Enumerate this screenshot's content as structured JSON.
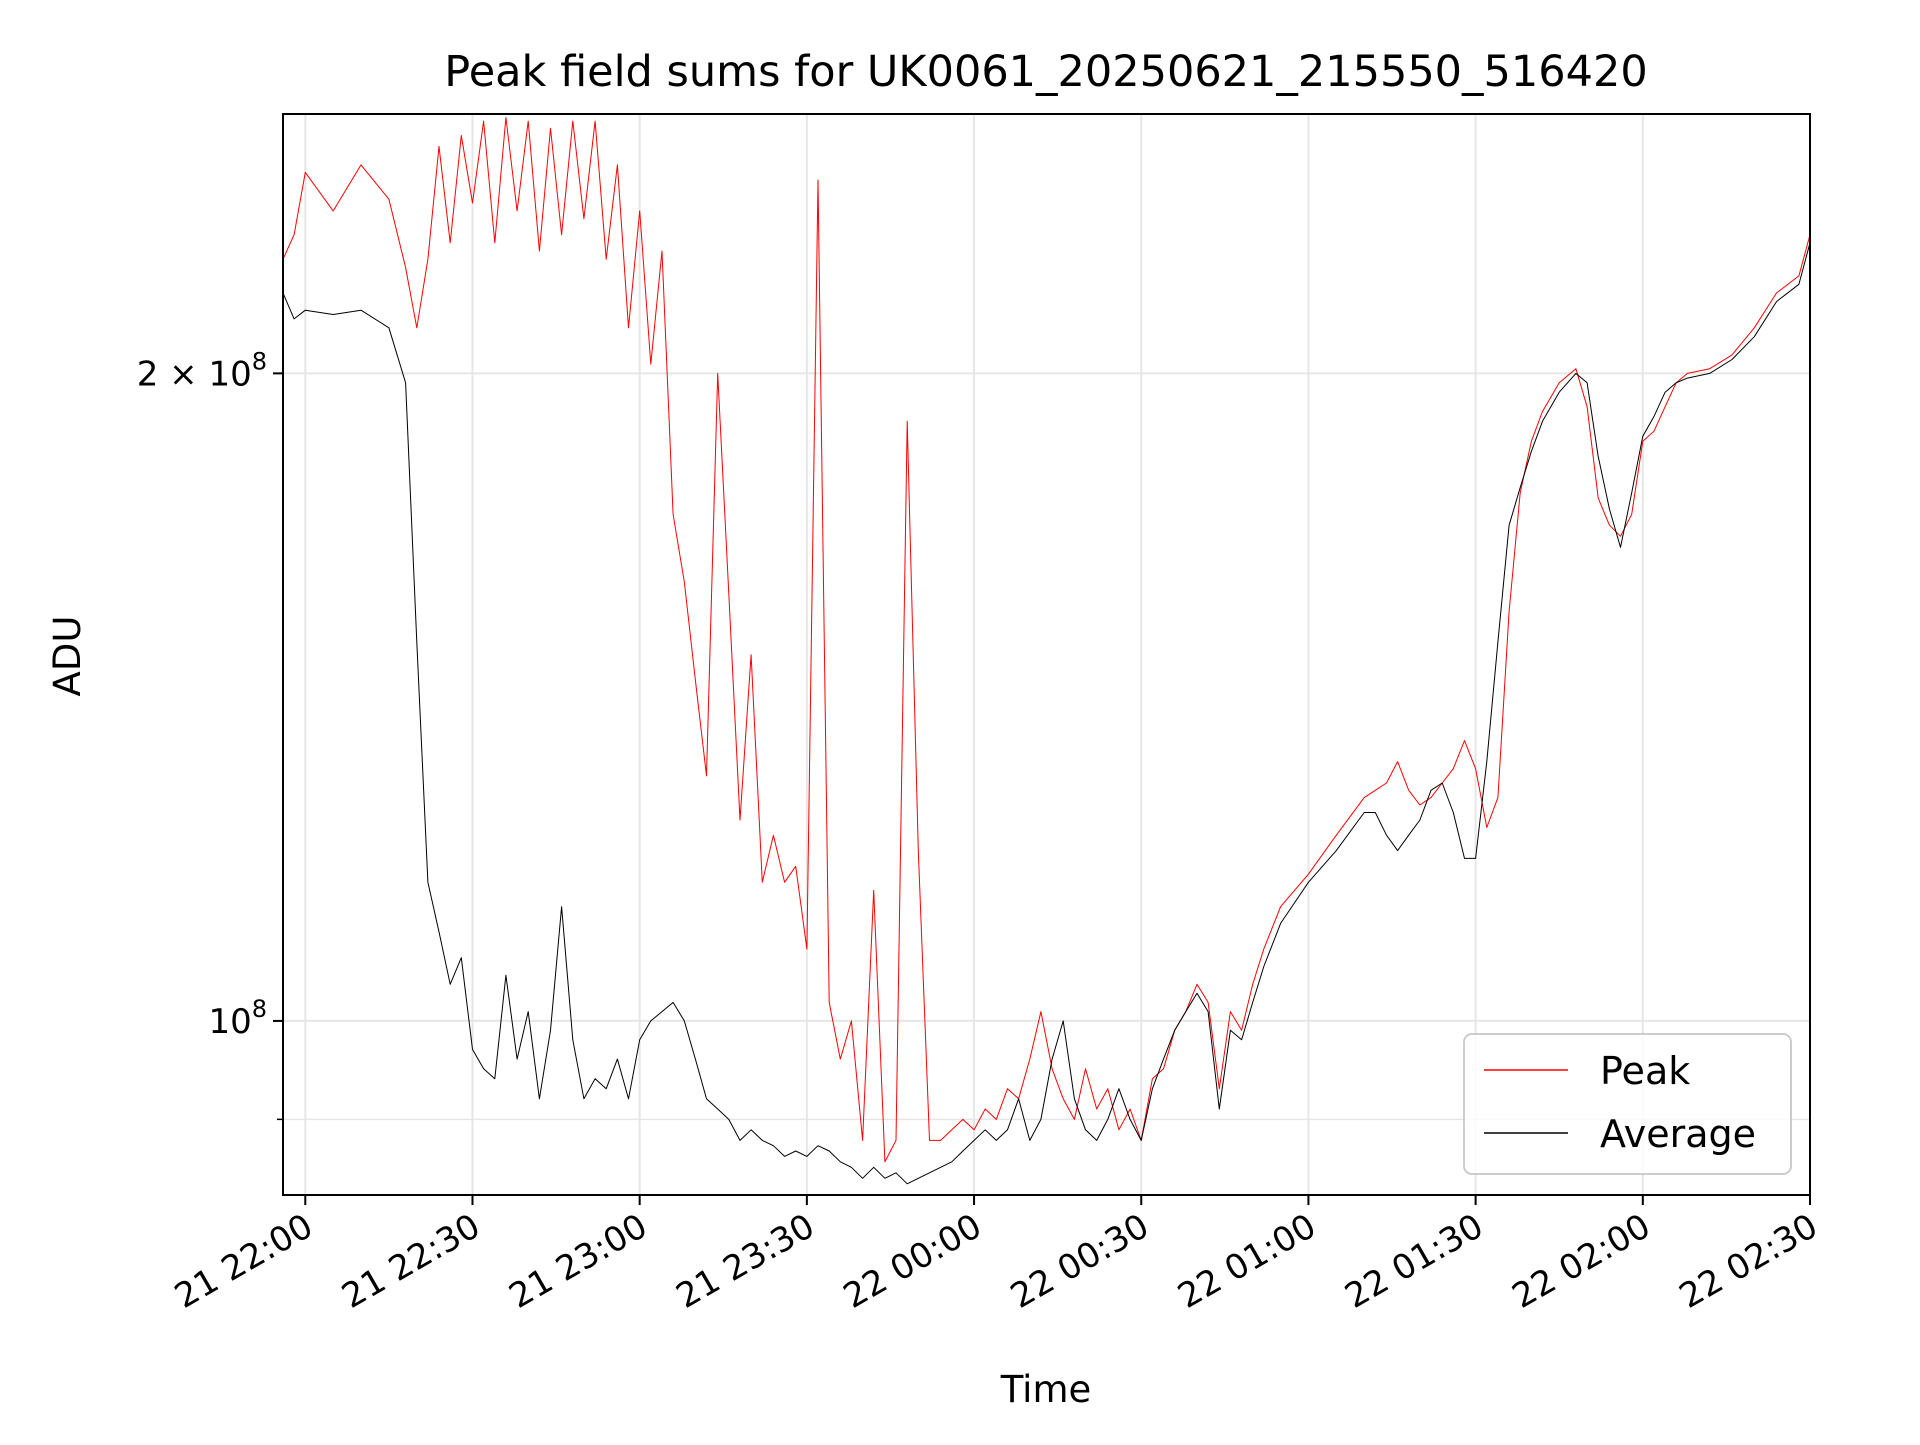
{
  "chart_data": {
    "type": "line",
    "title": "Peak field sums for UK0061_20250621_215550_516420",
    "xlabel": "Time",
    "ylabel": "ADU",
    "y_scale": "log",
    "ylim": [
      83000000,
      264000000
    ],
    "xlim": [
      "2025-06-21T21:56:00",
      "2025-06-22T02:30:00"
    ],
    "x_ticks": [
      "21 22:00",
      "21 22:30",
      "21 23:00",
      "21 23:30",
      "22 00:00",
      "22 00:30",
      "22 01:00",
      "22 01:30",
      "22 02:00",
      "22 02:30"
    ],
    "y_tick_labels": [
      {
        "value": 200000000,
        "mantissa": "2",
        "sep": "×",
        "base": "10",
        "exp": "8"
      },
      {
        "value": 100000000,
        "mantissa": "",
        "sep": "",
        "base": "10",
        "exp": "8"
      }
    ],
    "y_minor_ticks": [
      90000000
    ],
    "grid": true,
    "legend_position": "lower right",
    "series": [
      {
        "name": "Peak",
        "color": "#ff0000",
        "x": [
          "21 21:56",
          "21 21:58",
          "21 22:00",
          "21 22:05",
          "21 22:10",
          "21 22:15",
          "21 22:18",
          "21 22:20",
          "21 22:22",
          "21 22:24",
          "21 22:26",
          "21 22:28",
          "21 22:30",
          "21 22:32",
          "21 22:34",
          "21 22:36",
          "21 22:38",
          "21 22:40",
          "21 22:42",
          "21 22:44",
          "21 22:46",
          "21 22:48",
          "21 22:50",
          "21 22:52",
          "21 22:54",
          "21 22:56",
          "21 22:58",
          "21 23:00",
          "21 23:02",
          "21 23:04",
          "21 23:06",
          "21 23:08",
          "21 23:10",
          "21 23:12",
          "21 23:14",
          "21 23:16",
          "21 23:18",
          "21 23:20",
          "21 23:22",
          "21 23:24",
          "21 23:26",
          "21 23:28",
          "21 23:30",
          "21 23:32",
          "21 23:34",
          "21 23:36",
          "21 23:38",
          "21 23:40",
          "21 23:42",
          "21 23:44",
          "21 23:46",
          "21 23:48",
          "21 23:50",
          "21 23:52",
          "21 23:54",
          "21 23:56",
          "21 23:58",
          "22 00:00",
          "22 00:02",
          "22 00:04",
          "22 00:06",
          "22 00:08",
          "22 00:10",
          "22 00:12",
          "22 00:14",
          "22 00:16",
          "22 00:18",
          "22 00:20",
          "22 00:22",
          "22 00:24",
          "22 00:26",
          "22 00:28",
          "22 00:30",
          "22 00:32",
          "22 00:34",
          "22 00:36",
          "22 00:38",
          "22 00:40",
          "22 00:42",
          "22 00:44",
          "22 00:46",
          "22 00:48",
          "22 00:50",
          "22 00:52",
          "22 00:55",
          "22 01:00",
          "22 01:05",
          "22 01:10",
          "22 01:12",
          "22 01:14",
          "22 01:16",
          "22 01:18",
          "22 01:20",
          "22 01:22",
          "22 01:24",
          "22 01:26",
          "22 01:28",
          "22 01:30",
          "22 01:32",
          "22 01:34",
          "22 01:36",
          "22 01:38",
          "22 01:40",
          "22 01:42",
          "22 01:45",
          "22 01:48",
          "22 01:50",
          "22 01:52",
          "22 01:54",
          "22 01:56",
          "22 01:58",
          "22 02:00",
          "22 02:02",
          "22 02:04",
          "22 02:06",
          "22 02:08",
          "22 02:12",
          "22 02:16",
          "22 02:20",
          "22 02:24",
          "22 02:28",
          "22 02:30"
        ],
        "y": [
          226000000,
          232000000,
          248000000,
          238000000,
          250000000,
          241000000,
          224000000,
          210000000,
          226000000,
          255000000,
          230000000,
          258000000,
          240000000,
          262000000,
          230000000,
          263000000,
          238000000,
          262000000,
          228000000,
          260000000,
          232000000,
          262000000,
          236000000,
          262000000,
          226000000,
          250000000,
          210000000,
          238000000,
          202000000,
          228000000,
          172000000,
          160000000,
          144000000,
          130000000,
          200000000,
          158000000,
          124000000,
          148000000,
          116000000,
          122000000,
          116000000,
          118000000,
          108000000,
          246000000,
          102000000,
          96000000,
          100000000,
          88000000,
          115000000,
          86000000,
          88000000,
          190000000,
          120000000,
          88000000,
          88000000,
          89000000,
          90000000,
          89000000,
          91000000,
          90000000,
          93000000,
          92000000,
          96000000,
          101000000,
          95000000,
          92000000,
          90000000,
          95000000,
          91000000,
          93000000,
          89000000,
          91000000,
          88000000,
          94000000,
          95000000,
          99000000,
          101000000,
          104000000,
          102000000,
          93000000,
          101000000,
          99000000,
          104000000,
          108000000,
          113000000,
          117000000,
          122000000,
          127000000,
          128000000,
          129000000,
          132000000,
          128000000,
          126000000,
          127000000,
          129000000,
          131000000,
          135000000,
          131000000,
          123000000,
          127000000,
          155000000,
          176000000,
          186000000,
          192000000,
          198000000,
          201000000,
          193000000,
          175000000,
          170000000,
          168000000,
          172000000,
          186000000,
          188000000,
          193000000,
          198000000,
          200000000,
          201000000,
          204000000,
          210000000,
          218000000,
          222000000,
          232000000
        ],
        "line_width": 1
      },
      {
        "name": "Average",
        "color": "#000000",
        "x": [
          "21 21:56",
          "21 21:58",
          "21 22:00",
          "21 22:05",
          "21 22:10",
          "21 22:15",
          "21 22:18",
          "21 22:20",
          "21 22:22",
          "21 22:24",
          "21 22:26",
          "21 22:28",
          "21 22:30",
          "21 22:32",
          "21 22:34",
          "21 22:36",
          "21 22:38",
          "21 22:40",
          "21 22:42",
          "21 22:44",
          "21 22:46",
          "21 22:48",
          "21 22:50",
          "21 22:52",
          "21 22:54",
          "21 22:56",
          "21 22:58",
          "21 23:00",
          "21 23:02",
          "21 23:04",
          "21 23:06",
          "21 23:08",
          "21 23:10",
          "21 23:12",
          "21 23:14",
          "21 23:16",
          "21 23:18",
          "21 23:20",
          "21 23:22",
          "21 23:24",
          "21 23:26",
          "21 23:28",
          "21 23:30",
          "21 23:32",
          "21 23:34",
          "21 23:36",
          "21 23:38",
          "21 23:40",
          "21 23:42",
          "21 23:44",
          "21 23:46",
          "21 23:48",
          "21 23:50",
          "21 23:52",
          "21 23:54",
          "21 23:56",
          "21 23:58",
          "22 00:00",
          "22 00:02",
          "22 00:04",
          "22 00:06",
          "22 00:08",
          "22 00:10",
          "22 00:12",
          "22 00:14",
          "22 00:16",
          "22 00:18",
          "22 00:20",
          "22 00:22",
          "22 00:24",
          "22 00:26",
          "22 00:28",
          "22 00:30",
          "22 00:32",
          "22 00:34",
          "22 00:36",
          "22 00:38",
          "22 00:40",
          "22 00:42",
          "22 00:44",
          "22 00:46",
          "22 00:48",
          "22 00:50",
          "22 00:52",
          "22 00:55",
          "22 01:00",
          "22 01:05",
          "22 01:10",
          "22 01:12",
          "22 01:14",
          "22 01:16",
          "22 01:18",
          "22 01:20",
          "22 01:22",
          "22 01:24",
          "22 01:26",
          "22 01:28",
          "22 01:30",
          "22 01:32",
          "22 01:34",
          "22 01:36",
          "22 01:38",
          "22 01:40",
          "22 01:42",
          "22 01:45",
          "22 01:48",
          "22 01:50",
          "22 01:52",
          "22 01:54",
          "22 01:56",
          "22 01:58",
          "22 02:00",
          "22 02:02",
          "22 02:04",
          "22 02:06",
          "22 02:08",
          "22 02:12",
          "22 02:16",
          "22 02:20",
          "22 02:24",
          "22 02:28",
          "22 02:30"
        ],
        "y": [
          218000000,
          212000000,
          214000000,
          213000000,
          214000000,
          210000000,
          198000000,
          150000000,
          116000000,
          110000000,
          104000000,
          107000000,
          97000000,
          95000000,
          94000000,
          105000000,
          96000000,
          101000000,
          92000000,
          99000000,
          113000000,
          98000000,
          92000000,
          94000000,
          93000000,
          96000000,
          92000000,
          98000000,
          100000000,
          101000000,
          102000000,
          100000000,
          96000000,
          92000000,
          91000000,
          90000000,
          88000000,
          89000000,
          88000000,
          87500000,
          86500000,
          87000000,
          86500000,
          87500000,
          87000000,
          86000000,
          85500000,
          84500000,
          85500000,
          84500000,
          85000000,
          84000000,
          84500000,
          85000000,
          85500000,
          86000000,
          87000000,
          88000000,
          89000000,
          88000000,
          89000000,
          92000000,
          88000000,
          90000000,
          96000000,
          100000000,
          92000000,
          89000000,
          88000000,
          90000000,
          93000000,
          90000000,
          88000000,
          93000000,
          96000000,
          99000000,
          101000000,
          103000000,
          101000000,
          91000000,
          99000000,
          98000000,
          102000000,
          106000000,
          111000000,
          116000000,
          120000000,
          125000000,
          125000000,
          122000000,
          120000000,
          122000000,
          124000000,
          128000000,
          129000000,
          125000000,
          119000000,
          119000000,
          132000000,
          150000000,
          170000000,
          177000000,
          184000000,
          190000000,
          196000000,
          200000000,
          198000000,
          183000000,
          173000000,
          166000000,
          176000000,
          187000000,
          191000000,
          196000000,
          198000000,
          199000000,
          200000000,
          203000000,
          208000000,
          216000000,
          220000000,
          230000000
        ],
        "line_width": 1
      }
    ]
  }
}
